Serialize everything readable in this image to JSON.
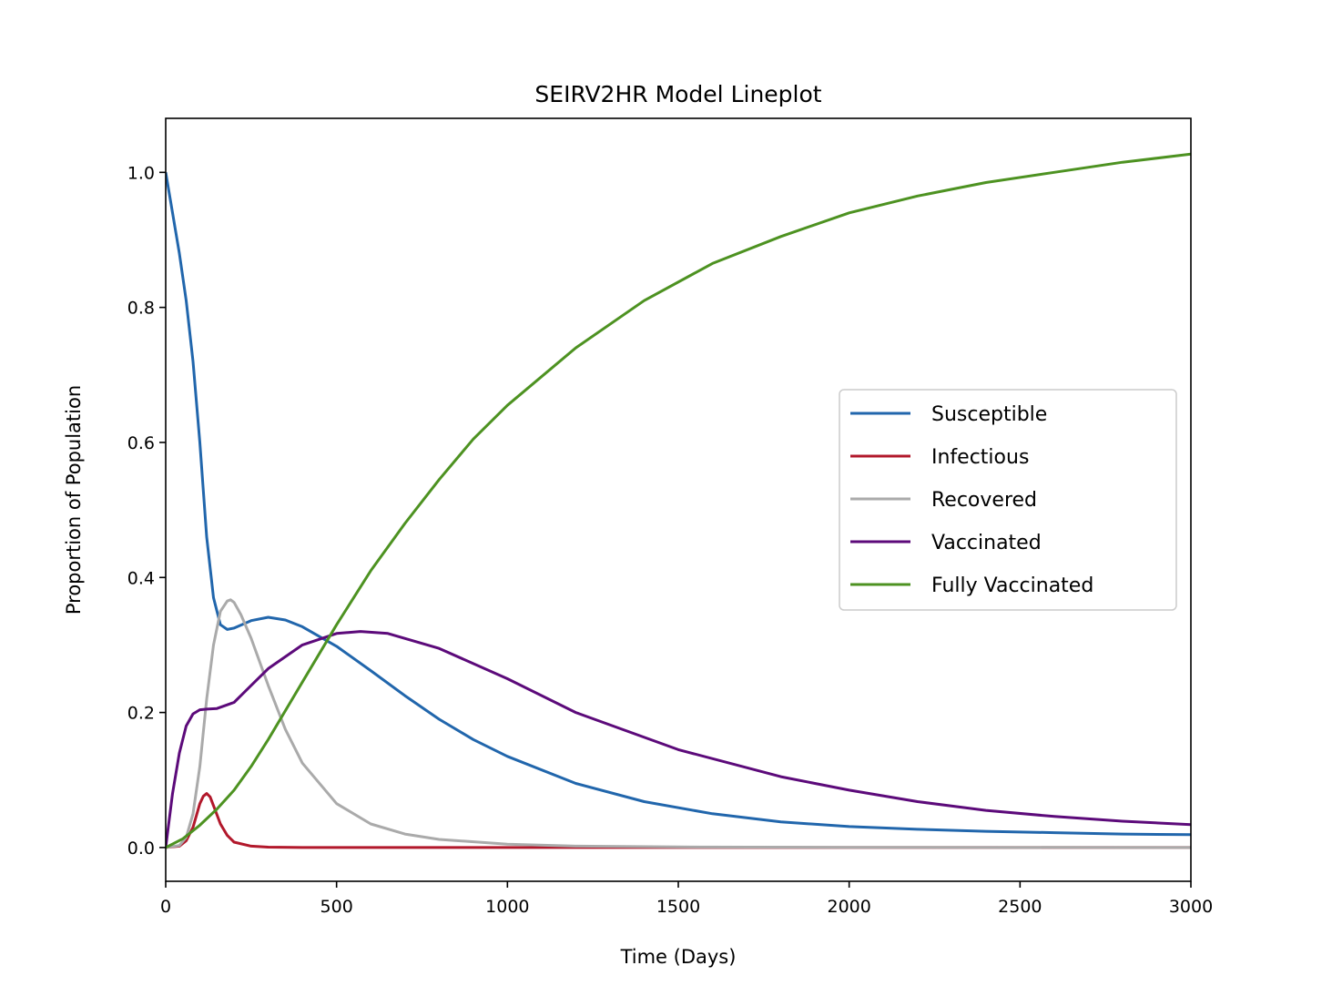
{
  "chart_data": {
    "type": "line",
    "title": "SEIRV2HR Model Lineplot",
    "xlabel": "Time (Days)",
    "ylabel": "Proportion of Population",
    "xlim": [
      0,
      3000
    ],
    "ylim": [
      -0.05,
      1.08
    ],
    "xticks": [
      0,
      500,
      1000,
      1500,
      2000,
      2500,
      3000
    ],
    "xtick_labels": [
      "0",
      "500",
      "1000",
      "1500",
      "2000",
      "2500",
      "3000"
    ],
    "yticks": [
      0.0,
      0.2,
      0.4,
      0.6,
      0.8,
      1.0
    ],
    "ytick_labels": [
      "0.0",
      "0.2",
      "0.4",
      "0.6",
      "0.8",
      "1.0"
    ],
    "grid": false,
    "legend_position": "center-right",
    "series": [
      {
        "name": "Susceptible",
        "color": "#2166ac",
        "x": [
          0,
          20,
          40,
          60,
          80,
          100,
          120,
          140,
          160,
          180,
          200,
          250,
          300,
          350,
          400,
          500,
          600,
          700,
          800,
          900,
          1000,
          1200,
          1400,
          1600,
          1800,
          2000,
          2200,
          2400,
          2600,
          2800,
          3000
        ],
        "y": [
          1.0,
          0.94,
          0.88,
          0.81,
          0.72,
          0.6,
          0.46,
          0.37,
          0.33,
          0.323,
          0.325,
          0.336,
          0.341,
          0.337,
          0.327,
          0.298,
          0.262,
          0.225,
          0.19,
          0.16,
          0.135,
          0.095,
          0.068,
          0.05,
          0.038,
          0.031,
          0.027,
          0.024,
          0.022,
          0.02,
          0.019
        ]
      },
      {
        "name": "Infectious",
        "color": "#b2182b",
        "x": [
          0,
          40,
          60,
          80,
          100,
          110,
          120,
          130,
          140,
          160,
          180,
          200,
          250,
          300,
          400,
          1000,
          2000,
          3000
        ],
        "y": [
          0.0,
          0.002,
          0.01,
          0.03,
          0.065,
          0.076,
          0.08,
          0.075,
          0.062,
          0.035,
          0.018,
          0.008,
          0.002,
          0.0005,
          0.0,
          0.0,
          0.0,
          0.0
        ]
      },
      {
        "name": "Recovered",
        "color": "#aaaaaa",
        "x": [
          0,
          40,
          60,
          80,
          100,
          120,
          140,
          160,
          180,
          190,
          200,
          220,
          250,
          300,
          350,
          400,
          500,
          600,
          700,
          800,
          1000,
          1200,
          1500,
          2000,
          3000
        ],
        "y": [
          0.0,
          0.003,
          0.015,
          0.05,
          0.12,
          0.22,
          0.3,
          0.35,
          0.365,
          0.367,
          0.363,
          0.345,
          0.31,
          0.24,
          0.175,
          0.125,
          0.065,
          0.035,
          0.02,
          0.012,
          0.005,
          0.002,
          0.0008,
          0.0003,
          0.0
        ]
      },
      {
        "name": "Vaccinated",
        "color": "#5c0a7a",
        "x": [
          0,
          20,
          40,
          60,
          80,
          100,
          120,
          150,
          200,
          250,
          300,
          400,
          500,
          570,
          650,
          800,
          1000,
          1200,
          1500,
          1800,
          2000,
          2200,
          2400,
          2600,
          2800,
          3000
        ],
        "y": [
          0.0,
          0.08,
          0.14,
          0.18,
          0.198,
          0.204,
          0.205,
          0.206,
          0.215,
          0.24,
          0.265,
          0.3,
          0.317,
          0.32,
          0.317,
          0.295,
          0.25,
          0.2,
          0.145,
          0.105,
          0.085,
          0.068,
          0.055,
          0.046,
          0.039,
          0.034
        ]
      },
      {
        "name": "Fully Vaccinated",
        "color": "#4d9221",
        "x": [
          0,
          50,
          100,
          150,
          200,
          250,
          300,
          400,
          500,
          600,
          700,
          800,
          900,
          1000,
          1200,
          1400,
          1600,
          1800,
          2000,
          2200,
          2400,
          2600,
          2800,
          3000
        ],
        "y": [
          0.0,
          0.013,
          0.033,
          0.057,
          0.085,
          0.12,
          0.16,
          0.245,
          0.33,
          0.41,
          0.48,
          0.545,
          0.605,
          0.655,
          0.74,
          0.81,
          0.865,
          0.905,
          0.94,
          0.965,
          0.985,
          1.0,
          1.015,
          1.027
        ]
      }
    ]
  }
}
